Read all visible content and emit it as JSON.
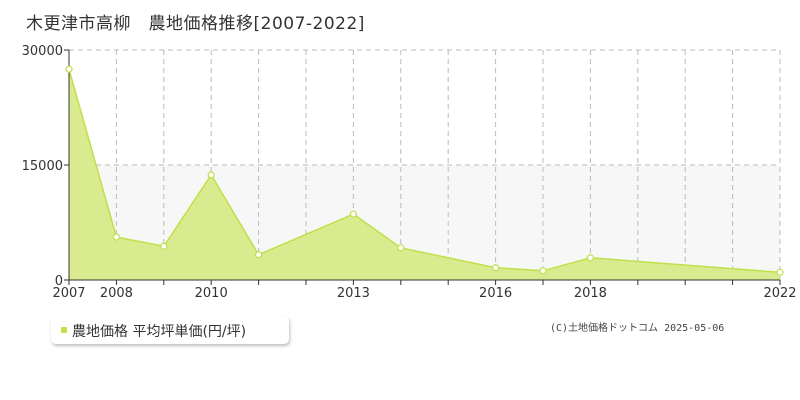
{
  "title": "木更津市高柳　農地価格推移[2007-2022]",
  "copyright": "(C)土地価格ドットコム 2025-05-06",
  "colors": {
    "fill": "#d9eb8e",
    "line": "#bfe04a",
    "grid": "#bbbbbb",
    "band": "#f7f7f7",
    "point_fill": "#ffffff"
  },
  "chart_data": {
    "type": "area",
    "x": [
      2007,
      2008,
      2009,
      2010,
      2011,
      2012,
      2013,
      2014,
      2015,
      2016,
      2017,
      2018,
      2019,
      2020,
      2021,
      2022
    ],
    "series": [
      {
        "name": "農地価格 平均坪単価(円/坪)",
        "x": [
          2007,
          2008,
          2009.0,
          2010,
          2011.0,
          2013,
          2014.0,
          2016,
          2017.0,
          2018,
          2022
        ],
        "values": [
          27500,
          5600,
          4400,
          13700,
          3300,
          8600,
          4200,
          1600,
          1200,
          2900,
          1000
        ]
      }
    ],
    "x_ticks": [
      2007,
      2008,
      2010,
      2013,
      2016,
      2018,
      2022
    ],
    "y_ticks": [
      0,
      15000,
      30000
    ],
    "ylim": [
      0,
      30000
    ],
    "xlim": [
      2007,
      2022
    ],
    "grid": true,
    "legend": "bottom-left"
  }
}
